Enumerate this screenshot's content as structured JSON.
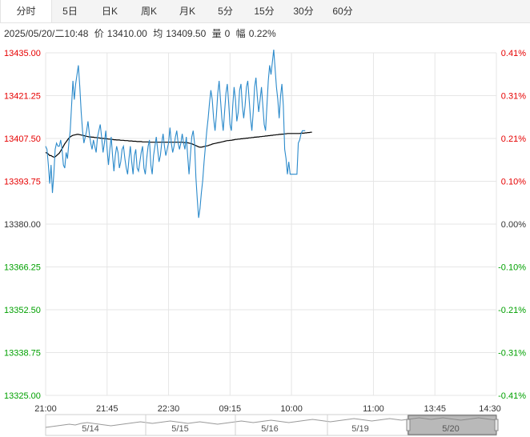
{
  "tabs": [
    "分时",
    "5日",
    "日K",
    "周K",
    "月K",
    "5分",
    "15分",
    "30分",
    "60分"
  ],
  "active_tab": 0,
  "info": {
    "datetime": "2025/05/20/二10:48",
    "price_label": "价",
    "price": "13410.00",
    "avg_label": "均",
    "avg": "13409.50",
    "volume_label": "量",
    "volume": "0",
    "change_label": "幅",
    "change": "0.22%"
  },
  "colors": {
    "up": "#e60000",
    "down": "#00a000",
    "price_line": "#2b8acb",
    "avg_line": "#000000",
    "grid": "#e6e6e6"
  },
  "chart_data": {
    "type": "line",
    "ylim": [
      13325.0,
      13435.0
    ],
    "y_ticks": [
      "13435.00",
      "13421.25",
      "13407.50",
      "13393.75",
      "13380.00",
      "13366.25",
      "13352.50",
      "13338.75",
      "13325.00"
    ],
    "y_pct_ticks": [
      "0.41%",
      "0.31%",
      "0.21%",
      "0.10%",
      "0.00%",
      "-0.10%",
      "-0.21%",
      "-0.31%",
      "-0.41%"
    ],
    "x_ticks": [
      "21:00",
      "21:45",
      "22:30",
      "09:15",
      "10:00",
      "11:00",
      "13:45",
      "14:30"
    ],
    "x_tick_index": [
      0,
      45,
      90,
      135,
      180,
      240,
      285,
      330
    ],
    "total_points": 330,
    "series": [
      {
        "role": "price",
        "values": [
          13405,
          13404,
          13399,
          13393,
          13399,
          13390,
          13396,
          13404,
          13406,
          13405,
          13405,
          13407,
          13404,
          13399,
          13398,
          13403,
          13401,
          13406,
          13410,
          13418,
          13426,
          13420,
          13425,
          13428,
          13431,
          13424,
          13416,
          13410,
          13406,
          13408,
          13410,
          13413,
          13409,
          13406,
          13404,
          13407,
          13405,
          13403,
          13408,
          13410,
          13412,
          13408,
          13403,
          13406,
          13410,
          13404,
          13399,
          13404,
          13408,
          13402,
          13397,
          13402,
          13405,
          13403,
          13398,
          13400,
          13404,
          13405,
          13401,
          13398,
          13396,
          13401,
          13405,
          13400,
          13396,
          13402,
          13404,
          13398,
          13397,
          13400,
          13403,
          13405,
          13398,
          13396,
          13401,
          13405,
          13407,
          13399,
          13396,
          13402,
          13405,
          13408,
          13404,
          13400,
          13402,
          13406,
          13409,
          13405,
          13402,
          13404,
          13406,
          13411,
          13406,
          13403,
          13405,
          13408,
          13410,
          13406,
          13404,
          13406,
          13409,
          13406,
          13404,
          13408,
          13402,
          13396,
          13402,
          13408,
          13410,
          13406,
          13395,
          13388,
          13382,
          13385,
          13390,
          13394,
          13400,
          13405,
          13410,
          13414,
          13419,
          13423,
          13420,
          13414,
          13410,
          13415,
          13422,
          13426,
          13420,
          13414,
          13410,
          13416,
          13422,
          13425,
          13419,
          13412,
          13410,
          13418,
          13424,
          13420,
          13413,
          13416,
          13423,
          13425,
          13418,
          13414,
          13418,
          13424,
          13426,
          13420,
          13414,
          13410,
          13416,
          13424,
          13427,
          13421,
          13416,
          13420,
          13424,
          13418,
          13412,
          13410,
          13418,
          13426,
          13431,
          13428,
          13432,
          13436,
          13430,
          13424,
          13420,
          13414,
          13421,
          13425,
          13418,
          13404,
          13401,
          13396,
          13400,
          13396,
          13396,
          13396,
          13396,
          13396,
          13396,
          13406,
          13407,
          13409,
          13410,
          13410,
          13410
        ]
      },
      {
        "role": "average",
        "values": [
          13403.0,
          13402.8,
          13402.5,
          13402.0,
          13402.0,
          13401.7,
          13401.5,
          13401.6,
          13402.0,
          13402.4,
          13402.8,
          13403.5,
          13404.2,
          13405.0,
          13405.8,
          13406.4,
          13407.0,
          13407.6,
          13408.0,
          13408.3,
          13408.5,
          13408.6,
          13408.7,
          13408.8,
          13408.8,
          13408.7,
          13408.6,
          13408.5,
          13408.4,
          13408.3,
          13408.2,
          13408.1,
          13408.0,
          13408.0,
          13407.9,
          13407.9,
          13407.8,
          13407.8,
          13407.7,
          13407.7,
          13407.6,
          13407.6,
          13407.5,
          13407.5,
          13407.4,
          13407.4,
          13407.3,
          13407.3,
          13407.2,
          13407.2,
          13407.1,
          13407.1,
          13407.0,
          13407.0,
          13407.0,
          13406.9,
          13406.9,
          13406.9,
          13406.8,
          13406.8,
          13406.8,
          13406.7,
          13406.7,
          13406.7,
          13406.6,
          13406.6,
          13406.6,
          13406.5,
          13406.5,
          13406.5,
          13406.5,
          13406.4,
          13406.4,
          13406.4,
          13406.4,
          13406.4,
          13406.3,
          13406.3,
          13406.3,
          13406.3,
          13406.3,
          13406.3,
          13406.3,
          13406.3,
          13406.3,
          13406.3,
          13406.3,
          13406.3,
          13406.3,
          13406.3,
          13406.3,
          13406.3,
          13406.3,
          13406.3,
          13406.3,
          13406.3,
          13406.3,
          13406.3,
          13406.3,
          13406.3,
          13406.3,
          13406.2,
          13406.2,
          13406.2,
          13406.1,
          13406.0,
          13405.9,
          13405.8,
          13405.6,
          13405.4,
          13405.2,
          13405.0,
          13404.8,
          13404.7,
          13404.7,
          13404.8,
          13404.9,
          13405.0,
          13405.1,
          13405.2,
          13405.4,
          13405.5,
          13405.7,
          13405.8,
          13405.9,
          13406.0,
          13406.1,
          13406.2,
          13406.3,
          13406.4,
          13406.5,
          13406.6,
          13406.7,
          13406.8,
          13406.8,
          13406.9,
          13406.9,
          13407.0,
          13407.1,
          13407.2,
          13407.2,
          13407.3,
          13407.3,
          13407.4,
          13407.4,
          13407.5,
          13407.5,
          13407.6,
          13407.6,
          13407.7,
          13407.7,
          13407.8,
          13407.8,
          13407.9,
          13407.9,
          13408.0,
          13408.0,
          13408.1,
          13408.1,
          13408.2,
          13408.2,
          13408.3,
          13408.3,
          13408.4,
          13408.4,
          13408.5,
          13408.5,
          13408.6,
          13408.6,
          13408.7,
          13408.7,
          13408.8,
          13408.8,
          13408.9,
          13408.9,
          13409.0,
          13409.0,
          13409.1,
          13409.1,
          13409.1,
          13409.1,
          13409.1,
          13409.1,
          13409.1,
          13409.1,
          13409.1,
          13409.1,
          13409.2,
          13409.2,
          13409.2,
          13409.3,
          13409.3,
          13409.4,
          13409.4,
          13409.5,
          13409.5
        ]
      }
    ],
    "navigator": {
      "labels": [
        "5/14",
        "5/15",
        "5/16",
        "5/19",
        "5/20"
      ]
    }
  }
}
